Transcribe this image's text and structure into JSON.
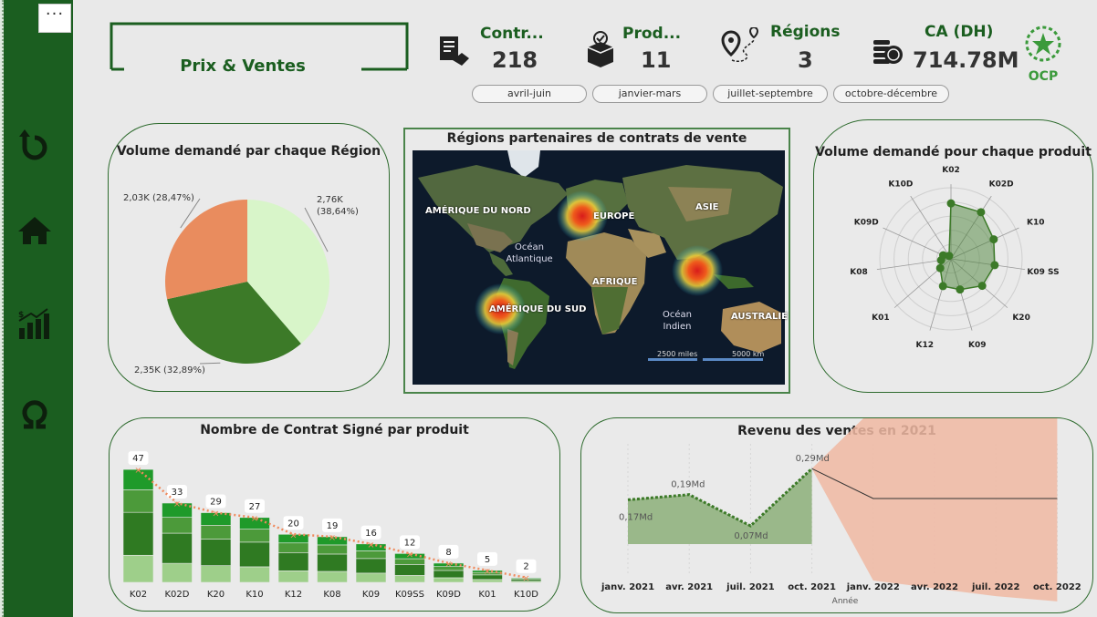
{
  "title_box": {
    "title": "Prix & Ventes"
  },
  "kpis": [
    {
      "label": "Contr...",
      "value": "218",
      "icon": "contract-icon"
    },
    {
      "label": "Prod...",
      "value": "11",
      "icon": "product-box-icon"
    },
    {
      "label": "Régions",
      "value": "3",
      "icon": "map-pin-route-icon"
    },
    {
      "label": "CA (DH)",
      "value": "714.78M",
      "icon": "coins-icon"
    }
  ],
  "logo": {
    "text": "OCP"
  },
  "period_filters": [
    "avril-juin",
    "janvier-mars",
    "juillet-septembre",
    "octobre-décembre"
  ],
  "nav": [
    {
      "name": "refresh-icon"
    },
    {
      "name": "home-icon"
    },
    {
      "name": "bar-chart-growth-icon"
    },
    {
      "name": "omega-icon"
    }
  ],
  "pie_card": {
    "title": "Volume demandé par chaque Région",
    "chart_data": {
      "type": "pie",
      "slices": [
        {
          "label": "2,76K (38,64%)",
          "value": 2760,
          "percent": 38.64,
          "color": "#d8f5c9"
        },
        {
          "label": "2,35K (32,89%)",
          "value": 2350,
          "percent": 32.89,
          "color": "#3c7a28"
        },
        {
          "label": "2,03K (28,47%)",
          "value": 2030,
          "percent": 28.47,
          "color": "#e98c5e"
        }
      ]
    }
  },
  "map_card": {
    "title": "Régions partenaires de contrats de vente",
    "labels": {
      "north_america": "AMÉRIQUE DU NORD",
      "europe": "EUROPE",
      "asia": "ASIE",
      "atlantic_1": "Océan",
      "atlantic_2": "Atlantique",
      "africa": "AFRIQUE",
      "south_america": "AMÉRIQUE DU SUD",
      "indian_1": "Océan",
      "indian_2": "Indien",
      "australia": "AUSTRALIE"
    },
    "scale": {
      "miles": "2500 miles",
      "km": "5000 km"
    }
  },
  "radar_card": {
    "title": "Volume demandé pour chaque produit",
    "chart_data": {
      "type": "radar",
      "categories": [
        "K02",
        "K02D",
        "K10",
        "K09 SS",
        "K20",
        "K09",
        "K12",
        "K01",
        "K08",
        "K09D",
        "K10D"
      ],
      "values": [
        0.78,
        0.78,
        0.66,
        0.62,
        0.58,
        0.45,
        0.4,
        0.2,
        0.14,
        0.12,
        0.05
      ],
      "ylim": [
        0,
        1
      ],
      "color": "#3c7a28"
    }
  },
  "bar_card": {
    "title": "Nombre de Contrat Signé par produit",
    "chart_data": {
      "type": "bar",
      "categories": [
        "K02",
        "K02D",
        "K20",
        "K10",
        "K12",
        "K08",
        "K09",
        "K09SS",
        "K09D",
        "K01",
        "K10D"
      ],
      "values": [
        47,
        33,
        29,
        27,
        20,
        19,
        16,
        12,
        8,
        5,
        2
      ],
      "ylim": [
        0,
        50
      ],
      "trendline": "exponential",
      "trend_color": "#f08a5d"
    }
  },
  "line_card": {
    "title": "Revenu des ventes en 2021",
    "chart_data": {
      "type": "area",
      "x": [
        "janv. 2021",
        "avr. 2021",
        "juil. 2021",
        "oct. 2021",
        "janv. 2022",
        "avr. 2022",
        "juil. 2022",
        "oct. 2022"
      ],
      "xlabel": "Année",
      "series": [
        {
          "values": [
            0.17,
            0.19,
            0.07,
            0.29
          ]
        }
      ],
      "labels": [
        "0,17Md",
        "0,19Md",
        "0,07Md",
        "0,29Md"
      ],
      "forecast": {
        "center": [
          0.29,
          0.175,
          0.175,
          0.175,
          0.175
        ],
        "upper": [
          0.29,
          0.52,
          0.55,
          0.57,
          0.58
        ],
        "lower": [
          0.29,
          -0.14,
          -0.17,
          -0.2,
          -0.22
        ]
      },
      "actual_color": "#9ab88a",
      "forecast_color": "#f0b8a2"
    }
  }
}
